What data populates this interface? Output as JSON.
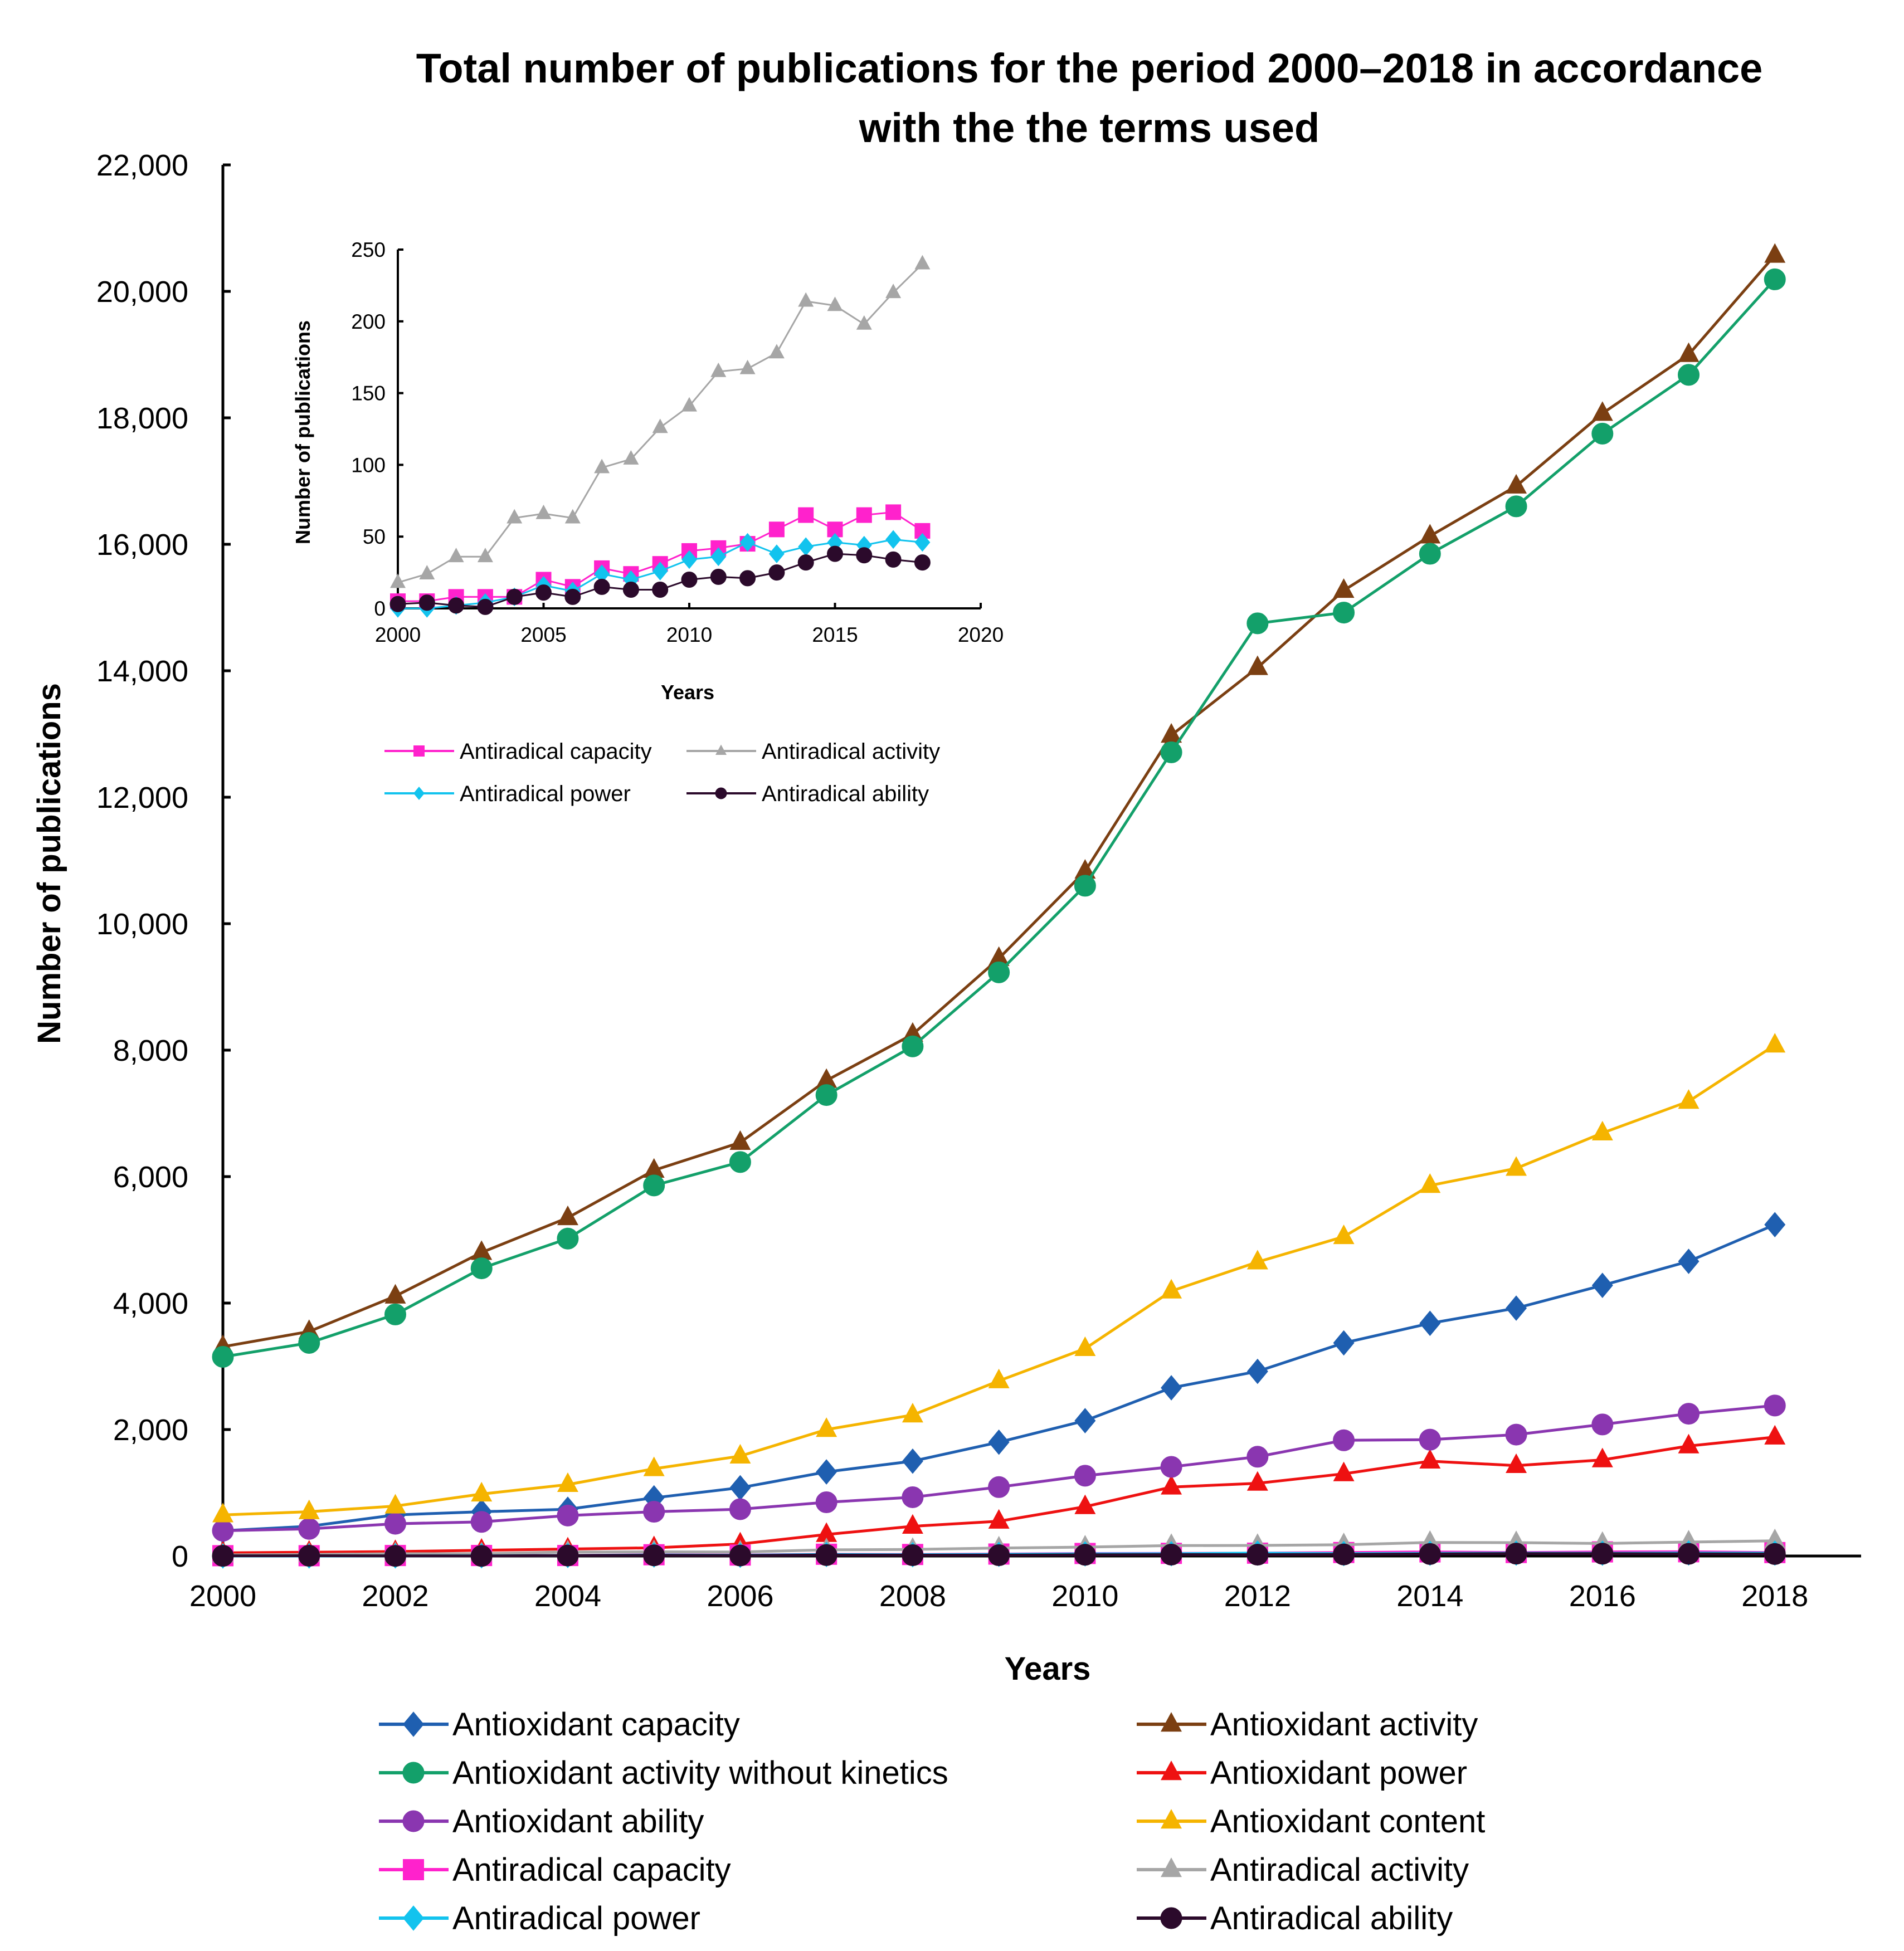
{
  "chart_data": [
    {
      "type": "line",
      "title_lines": [
        "Total number of publications for the period 2000–2018 in accordance",
        "with the the terms used"
      ],
      "xlabel": "Years",
      "ylabel": "Number of publications",
      "xlim": [
        2000,
        2019
      ],
      "ylim": [
        0,
        22000
      ],
      "x_ticks": [
        "2000",
        "2002",
        "2004",
        "2006",
        "2008",
        "2010",
        "2012",
        "2014",
        "2016",
        "2018"
      ],
      "y_ticks": [
        "0",
        "2,000",
        "4,000",
        "6,000",
        "8,000",
        "10,000",
        "12,000",
        "14,000",
        "16,000",
        "18,000",
        "20,000",
        "22,000"
      ],
      "x": [
        2000,
        2001,
        2002,
        2003,
        2004,
        2005,
        2006,
        2007,
        2008,
        2009,
        2010,
        2011,
        2012,
        2013,
        2014,
        2015,
        2016,
        2017,
        2018
      ],
      "legend_position": "bottom",
      "series": [
        {
          "name": "Antioxidant capacity",
          "color": "#1f5fb0",
          "marker": "diamond",
          "values": [
            400,
            470,
            650,
            700,
            740,
            920,
            1080,
            1330,
            1500,
            1800,
            2140,
            2660,
            2920,
            3370,
            3680,
            3920,
            4280,
            4660,
            5240
          ]
        },
        {
          "name": "Antioxidant activity",
          "color": "#7b3f12",
          "marker": "triangle",
          "values": [
            3310,
            3550,
            4110,
            4800,
            5350,
            6100,
            6540,
            7520,
            8250,
            9450,
            10830,
            12980,
            14050,
            15270,
            16130,
            16920,
            18070,
            19000,
            20570
          ]
        },
        {
          "name": "Antioxidant activity without kinetics",
          "color": "#13a06a",
          "marker": "circle",
          "values": [
            3150,
            3370,
            3820,
            4550,
            5020,
            5860,
            6230,
            7290,
            8060,
            9230,
            10600,
            12710,
            14750,
            14920,
            15850,
            16600,
            17750,
            18680,
            20190
          ]
        },
        {
          "name": "Antioxidant power",
          "color": "#ee1111",
          "marker": "triangle",
          "values": [
            50,
            60,
            70,
            90,
            110,
            130,
            190,
            340,
            470,
            550,
            780,
            1090,
            1150,
            1300,
            1500,
            1430,
            1520,
            1740,
            1880
          ]
        },
        {
          "name": "Antioxidant ability",
          "color": "#8a36b0",
          "marker": "circle",
          "values": [
            400,
            430,
            510,
            540,
            640,
            700,
            740,
            850,
            930,
            1090,
            1270,
            1410,
            1570,
            1830,
            1840,
            1920,
            2080,
            2250,
            2380
          ]
        },
        {
          "name": "Antioxidant content",
          "color": "#f5b400",
          "marker": "triangle",
          "values": [
            650,
            700,
            790,
            980,
            1130,
            1380,
            1580,
            2000,
            2230,
            2770,
            3280,
            4190,
            4650,
            5050,
            5860,
            6130,
            6690,
            7190,
            8080
          ]
        },
        {
          "name": "Antiradical capacity",
          "color": "#ff22cc",
          "marker": "square",
          "values": [
            5,
            5,
            8,
            8,
            8,
            20,
            15,
            28,
            24,
            31,
            40,
            42,
            45,
            55,
            65,
            55,
            65,
            67,
            54
          ]
        },
        {
          "name": "Antiradical activity",
          "color": "#a6a6a6",
          "marker": "triangle",
          "values": [
            18,
            24,
            36,
            36,
            63,
            66,
            63,
            98,
            104,
            126,
            141,
            165,
            167,
            178,
            214,
            211,
            198,
            220,
            240
          ]
        },
        {
          "name": "Antiradical power",
          "color": "#12c3ee",
          "marker": "diamond",
          "values": [
            0,
            0,
            2,
            4,
            8,
            16,
            12,
            24,
            20,
            26,
            34,
            36,
            46,
            38,
            43,
            46,
            44,
            48,
            46
          ]
        },
        {
          "name": "Antiradical ability",
          "color": "#2b0a2b",
          "marker": "circle",
          "values": [
            3,
            4,
            2,
            1,
            8,
            11,
            8,
            15,
            13,
            13,
            20,
            22,
            21,
            25,
            32,
            38,
            37,
            34,
            32
          ]
        }
      ]
    },
    {
      "type": "line",
      "title": "",
      "xlabel": "Years",
      "ylabel": "Number of publications",
      "xlim": [
        2000,
        2020
      ],
      "ylim": [
        0,
        250
      ],
      "x_ticks": [
        "2000",
        "2005",
        "2010",
        "2015",
        "2020"
      ],
      "y_ticks": [
        "0",
        "50",
        "100",
        "150",
        "200",
        "250"
      ],
      "x": [
        2000,
        2001,
        2002,
        2003,
        2004,
        2005,
        2006,
        2007,
        2008,
        2009,
        2010,
        2011,
        2012,
        2013,
        2014,
        2015,
        2016,
        2017,
        2018
      ],
      "legend_position": "bottom",
      "series": [
        {
          "name": "Antiradical capacity",
          "color": "#ff22cc",
          "marker": "square",
          "values": [
            5,
            5,
            8,
            8,
            8,
            20,
            15,
            28,
            24,
            31,
            40,
            42,
            45,
            55,
            65,
            55,
            65,
            67,
            54
          ]
        },
        {
          "name": "Antiradical activity",
          "color": "#a6a6a6",
          "marker": "triangle",
          "values": [
            18,
            24,
            36,
            36,
            63,
            66,
            63,
            98,
            104,
            126,
            141,
            165,
            167,
            178,
            214,
            211,
            198,
            220,
            240
          ]
        },
        {
          "name": "Antiradical power",
          "color": "#12c3ee",
          "marker": "diamond",
          "values": [
            0,
            0,
            2,
            4,
            8,
            16,
            12,
            24,
            20,
            26,
            34,
            36,
            46,
            38,
            43,
            46,
            44,
            48,
            46
          ]
        },
        {
          "name": "Antiradical ability",
          "color": "#2b0a2b",
          "marker": "circle",
          "values": [
            3,
            4,
            2,
            1,
            8,
            11,
            8,
            15,
            13,
            13,
            20,
            22,
            21,
            25,
            32,
            38,
            37,
            34,
            32
          ]
        }
      ]
    }
  ]
}
